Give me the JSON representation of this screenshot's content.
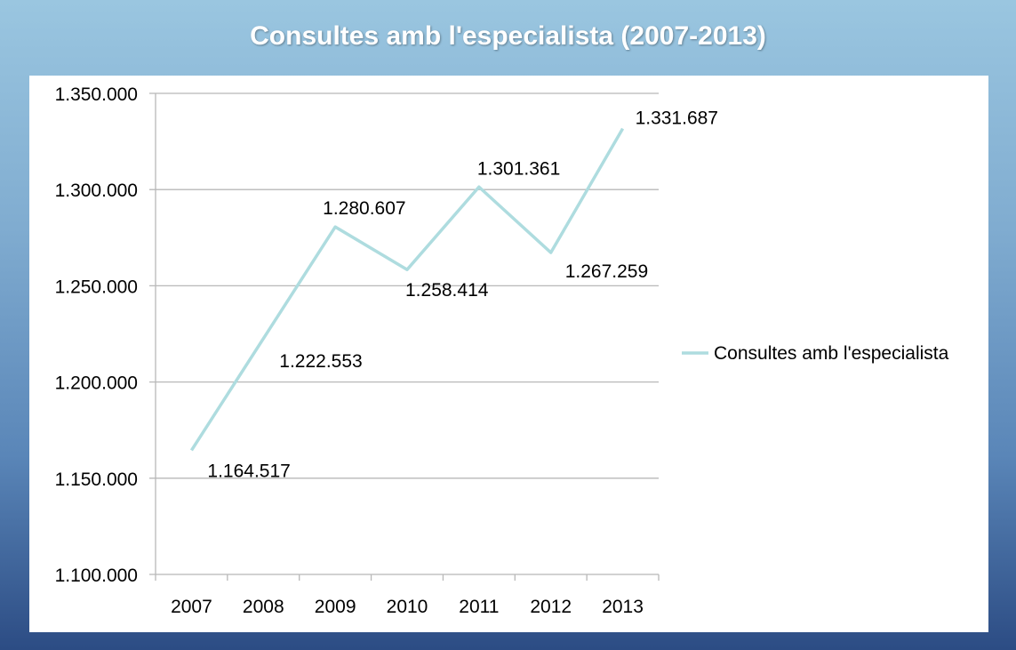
{
  "chart_data": {
    "type": "line",
    "title": "Consultes amb l'especialista (2007-2013)",
    "categories": [
      "2007",
      "2008",
      "2009",
      "2010",
      "2011",
      "2012",
      "2013"
    ],
    "series": [
      {
        "name": "Consultes amb l'especialista",
        "values": [
          1164517,
          1222553,
          1280607,
          1258414,
          1301361,
          1267259,
          1331687
        ],
        "labels": [
          "1.164.517",
          "1.222.553",
          "1.280.607",
          "1.258.414",
          "1.301.361",
          "1.267.259",
          "1.331.687"
        ],
        "color": "#aedcdf"
      }
    ],
    "ylim": [
      1100000,
      1350000
    ],
    "yticks": [
      1100000,
      1150000,
      1200000,
      1250000,
      1300000,
      1350000
    ],
    "ytick_labels": [
      "1.100.000",
      "1.150.000",
      "1.200.000",
      "1.250.000",
      "1.300.000",
      "1.350.000"
    ],
    "grid": true,
    "legend": "right",
    "xlabel": "",
    "ylabel": ""
  }
}
